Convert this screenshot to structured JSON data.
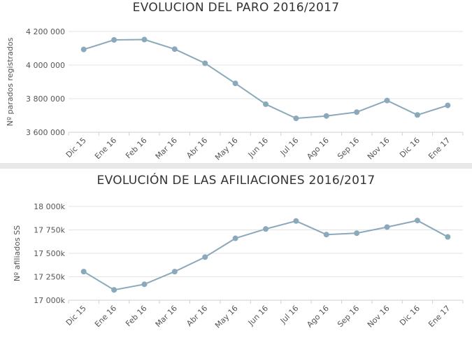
{
  "chart_data": [
    {
      "type": "line",
      "title": "EVOLUCION DEL PARO 2016/2017",
      "xlabel": "",
      "ylabel": "Nº parados registrados",
      "categories": [
        "Dic 15",
        "Ene 16",
        "Feb 16",
        "Mar 16",
        "Abr 16",
        "May 16",
        "Jun 16",
        "Jul 16",
        "Ago 16",
        "Sep 16",
        "Nov 16",
        "Dic 16",
        "Ene 17"
      ],
      "values": [
        4093000,
        4150000,
        4152000,
        4095000,
        4011000,
        3891000,
        3767000,
        3683000,
        3697000,
        3720000,
        3789000,
        3703000,
        3760000
      ],
      "ylim": [
        3600000,
        4200000
      ],
      "yticks": [
        3600000,
        3800000,
        4000000,
        4200000
      ],
      "ytick_labels": [
        "3 600 000",
        "3 800 000",
        "4 000 000",
        "4 200 000"
      ],
      "grid": true,
      "color": "#8aa9bb"
    },
    {
      "type": "line",
      "title": "EVOLUCIÓN DE LAS AFILIACIONES 2016/2017",
      "xlabel": "",
      "ylabel": "Nº afiliados SS",
      "categories": [
        "Dic 15",
        "Ene 16",
        "Feb 16",
        "Mar 16",
        "Abr 16",
        "May 16",
        "Jun 16",
        "Jul 16",
        "Ago 16",
        "Sep 16",
        "Nov 16",
        "Dic 16",
        "Ene 17"
      ],
      "values": [
        17305,
        17110,
        17170,
        17305,
        17460,
        17660,
        17760,
        17845,
        17700,
        17715,
        17780,
        17850,
        17675
      ],
      "ylim": [
        17000,
        18000
      ],
      "yticks": [
        17000,
        17250,
        17500,
        17750,
        18000
      ],
      "ytick_labels": [
        "17 000k",
        "17 250k",
        "17 500k",
        "17 750k",
        "18 000k"
      ],
      "grid": true,
      "color": "#8aa9bb"
    }
  ]
}
